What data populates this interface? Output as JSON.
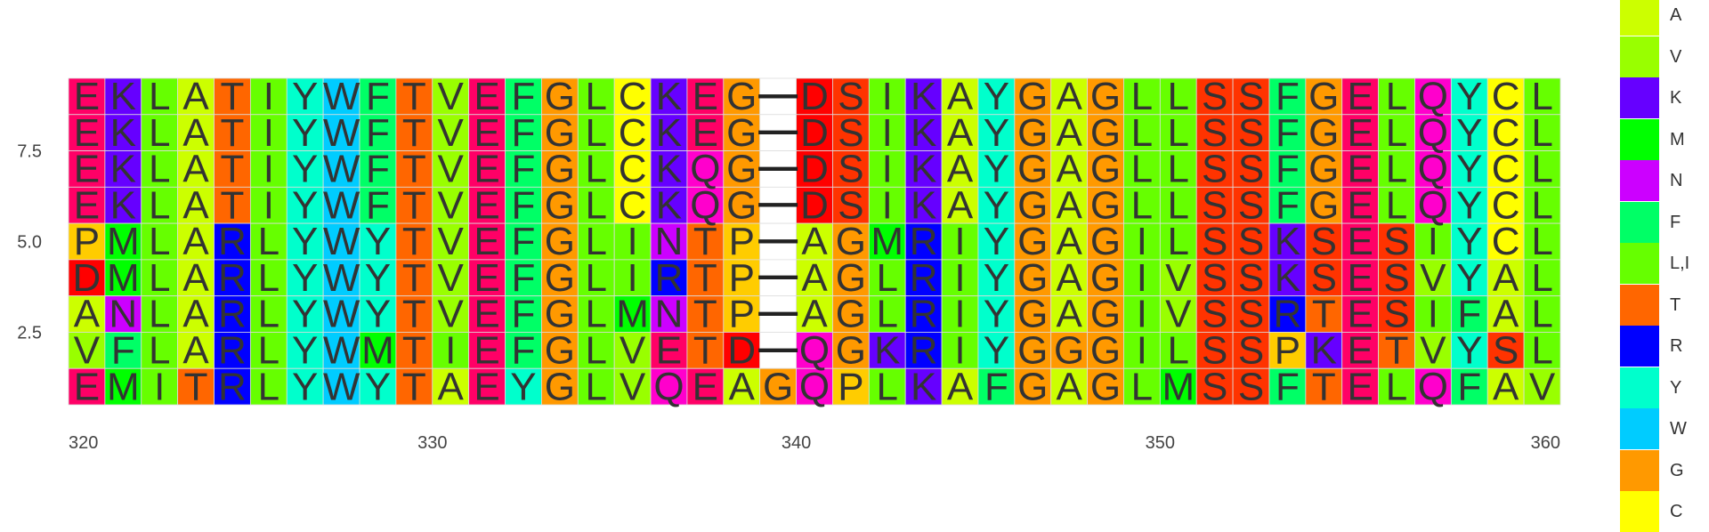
{
  "chart_data": {
    "type": "heatmap",
    "title": "",
    "xlabel": "",
    "ylabel": "",
    "xlim": [
      320,
      361
    ],
    "x_ticks": [
      320,
      330,
      340,
      350,
      360
    ],
    "y_ticks": [
      "7.5",
      "5.0",
      "2.5"
    ],
    "ylim": [
      0.5,
      9.5
    ],
    "gap_symbol": "—",
    "sequences": [
      "EKLATIYWFTVEFGLCKEG-DSIKAYGAGLLSSFGELQYCL",
      "EKLATIYWFTVEFGLCKEG-DSIKAYGAGLLSSFGELQYCL",
      "EKLATIYWFTVEFGLCKQG-DSIKAYGAGLLSSFGELQYCL",
      "EKLATIYWFTVEFGLCKQG-DSIKAYGAGLLSSFGELQYCL",
      "PMLARLYWYTVEFGLINTP-AGMRIYGAGILSSKSESIYCL",
      "DMLARLYWYTVEFGLIRTP-AGLRIYGAGIVSSKSESVYAL",
      "ANLARLYWYTVEFGLMNTP-AGLRIYGAGIVSSRTESIFAL",
      "VFLARLYWMTIEFGLVETD-QGKRIYGGGILSSPKETVYSL",
      "EMITRLYWYTAEYGLVQEAGQPLKAFGAGLMSSFTELQFAV"
    ],
    "legend": {
      "A": "#ccff00",
      "V": "#99ff00",
      "K": "#6600ff",
      "M": "#00ff00",
      "N": "#cc00ff",
      "F": "#00ff66",
      "L,I": "#66ff00",
      "T": "#ff6600",
      "R": "#0000ff",
      "Y": "#00ffcc",
      "W": "#00ccff",
      "G": "#ff9900",
      "C": "#ffff00"
    },
    "residue_colors": {
      "E": "#ff0066",
      "D": "#ff0000",
      "Q": "#ff00cc",
      "S": "#ff3300",
      "P": "#ffcc00",
      "I": "#66ff00",
      "L": "#66ff00",
      "-": "#ffffff"
    },
    "grid": false,
    "legend_position": "right"
  }
}
